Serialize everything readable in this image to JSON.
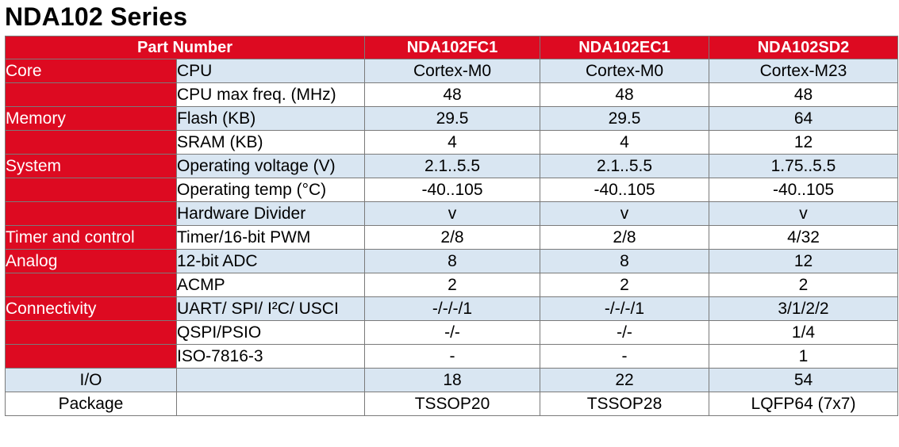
{
  "title": "NDA102 Series",
  "header": {
    "part_number": "Part Number",
    "models": [
      "NDA102FC1",
      "NDA102EC1",
      "NDA102SD2"
    ]
  },
  "rows": [
    {
      "category": "Core",
      "feature": "CPU",
      "values": [
        "Cortex-M0",
        "Cortex-M0",
        "Cortex-M23"
      ]
    },
    {
      "category": "",
      "feature": "CPU max freq. (MHz)",
      "values": [
        "48",
        "48",
        "48"
      ]
    },
    {
      "category": "Memory",
      "feature": "Flash (KB)",
      "values": [
        "29.5",
        "29.5",
        "64"
      ]
    },
    {
      "category": "",
      "feature": "SRAM (KB)",
      "values": [
        "4",
        "4",
        "12"
      ]
    },
    {
      "category": "System",
      "feature": "Operating voltage (V)",
      "values": [
        "2.1..5.5",
        "2.1..5.5",
        "1.75..5.5"
      ]
    },
    {
      "category": "",
      "feature": "Operating temp (°C)",
      "values": [
        "-40..105",
        "-40..105",
        "-40..105"
      ]
    },
    {
      "category": "",
      "feature": "Hardware Divider",
      "values": [
        "v",
        "v",
        "v"
      ]
    },
    {
      "category": "Timer and control",
      "feature": "Timer/16-bit PWM",
      "values": [
        "2/8",
        "2/8",
        "4/32"
      ]
    },
    {
      "category": "Analog",
      "feature": "12-bit ADC",
      "values": [
        "8",
        "8",
        "12"
      ]
    },
    {
      "category": "",
      "feature": "ACMP",
      "values": [
        "2",
        "2",
        "2"
      ]
    },
    {
      "category": "Connectivity",
      "feature": "UART/ SPI/ I²C/ USCI",
      "values": [
        "-/-/-/1",
        "-/-/-/1",
        "3/1/2/2"
      ]
    },
    {
      "category": "",
      "feature": "QSPI/PSIO",
      "values": [
        "-/-",
        "-/-",
        "1/4"
      ]
    },
    {
      "category": "",
      "feature": "ISO-7816-3",
      "values": [
        "-",
        "-",
        "1"
      ]
    },
    {
      "category": "I/O",
      "feature": "",
      "values": [
        "18",
        "22",
        "54"
      ]
    },
    {
      "category": "Package",
      "feature": "",
      "values": [
        "TSSOP20",
        "TSSOP28",
        "LQFP64 (7x7)"
      ]
    }
  ],
  "colors": {
    "brand_red": "#dd0a21",
    "row_shade": "#d9e6f2"
  }
}
